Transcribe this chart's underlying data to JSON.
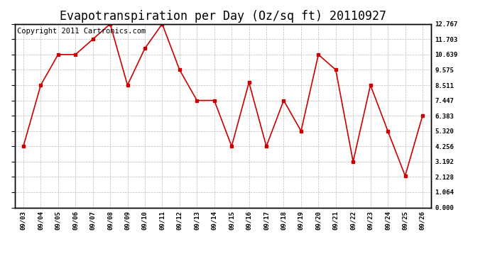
{
  "title": "Evapotranspiration per Day (Oz/sq ft) 20110927",
  "copyright": "Copyright 2011 Cartronics.com",
  "x_labels": [
    "09/03",
    "09/04",
    "09/05",
    "09/06",
    "09/07",
    "09/08",
    "09/09",
    "09/10",
    "09/11",
    "09/12",
    "09/13",
    "09/14",
    "09/15",
    "09/16",
    "09/17",
    "09/18",
    "09/19",
    "09/20",
    "09/21",
    "09/22",
    "09/23",
    "09/24",
    "09/25",
    "09/26"
  ],
  "y_values": [
    4.256,
    8.511,
    10.639,
    10.639,
    11.703,
    12.767,
    8.511,
    11.064,
    12.767,
    9.575,
    7.447,
    7.447,
    4.256,
    8.7,
    4.256,
    7.447,
    5.32,
    10.639,
    9.575,
    3.192,
    8.511,
    5.32,
    2.2,
    6.383
  ],
  "line_color": "#cc0000",
  "marker_color": "#cc0000",
  "bg_color": "#ffffff",
  "plot_bg_color": "#ffffff",
  "grid_color": "#bbbbbb",
  "y_ticks": [
    0.0,
    1.064,
    2.128,
    3.192,
    4.256,
    5.32,
    6.383,
    7.447,
    8.511,
    9.575,
    10.639,
    11.703,
    12.767
  ],
  "ylim": [
    0.0,
    12.767
  ],
  "title_fontsize": 12,
  "copyright_fontsize": 7.5
}
